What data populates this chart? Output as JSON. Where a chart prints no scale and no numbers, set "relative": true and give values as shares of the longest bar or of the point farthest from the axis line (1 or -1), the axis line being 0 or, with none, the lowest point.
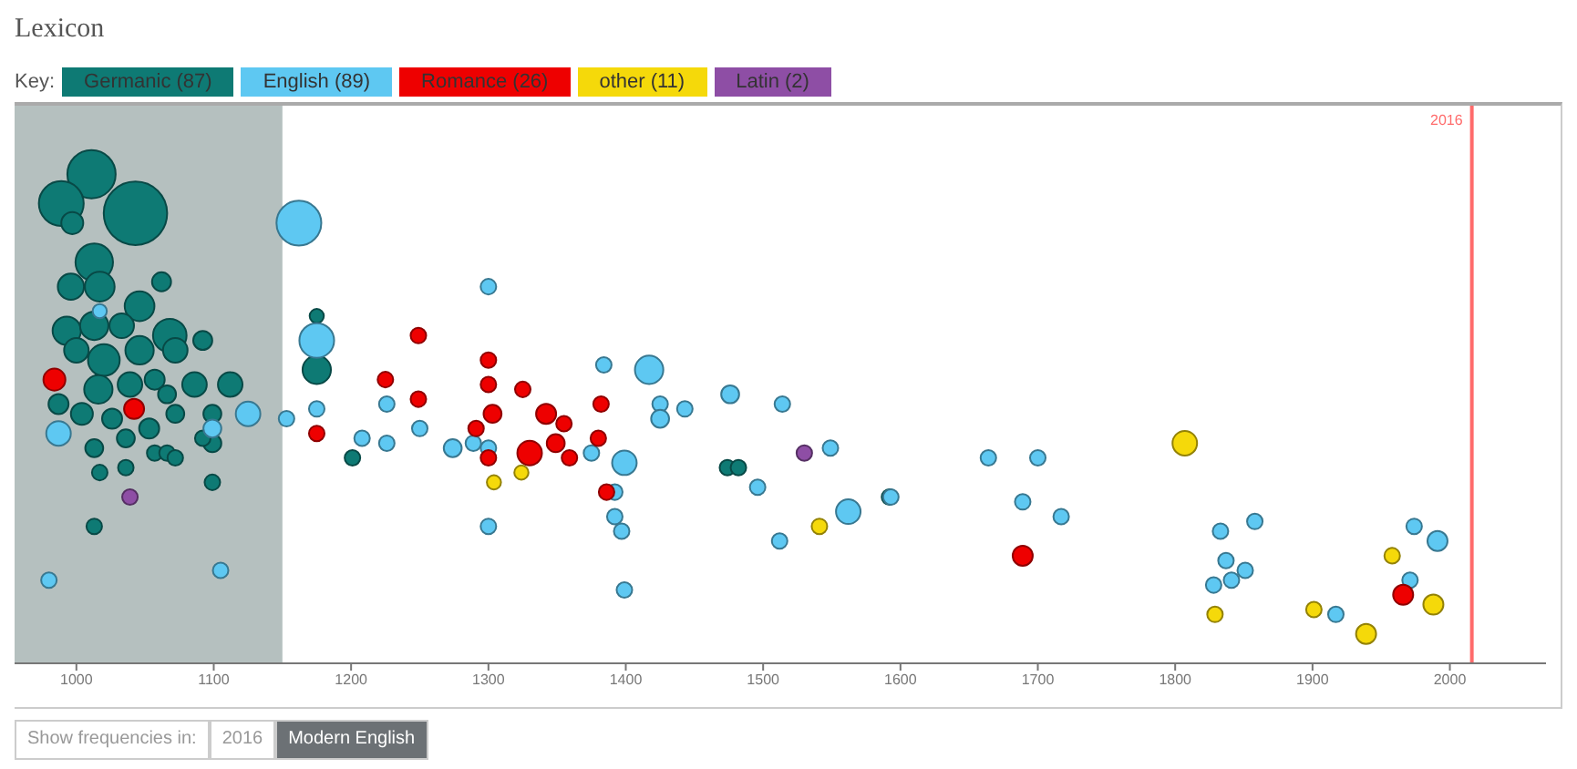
{
  "chart_data": {
    "type": "bubble",
    "title": "Lexicon",
    "legend_title": "Key:",
    "legend": "top left",
    "relative": true,
    "xlim": [
      955,
      2070
    ],
    "xticks": [
      1000,
      1100,
      1200,
      1300,
      1400,
      1500,
      1600,
      1700,
      1800,
      1900,
      2000
    ],
    "bands": [
      {
        "axis": "x",
        "from": 955,
        "to": 1150,
        "label": null,
        "color": "#b5c0bf"
      }
    ],
    "ref_lines": [
      {
        "axis": "x",
        "value": 2016,
        "label": "2016",
        "color": "#ff6b6b"
      }
    ],
    "annotations": [
      "Show frequencies in:",
      "2016",
      "Modern English"
    ],
    "series": [
      {
        "name": "Germanic (87)",
        "color": "#0e7a74",
        "x": [
          1011,
          989,
          1043,
          997,
          1013,
          996,
          1017,
          1046,
          1062,
          1068,
          993,
          1013,
          1033,
          1000,
          1020,
          1046,
          1072,
          1092,
          1016,
          1039,
          1057,
          1066,
          1086,
          1112,
          987,
          1004,
          1026,
          1053,
          1072,
          1099,
          1013,
          1036,
          1057,
          1066,
          1036,
          1017,
          1099,
          1013,
          1175,
          1175,
          1201,
          1474,
          1482,
          1592,
          1099,
          1092,
          1072
        ],
        "values": [
          1.0,
          0.94,
          0.92,
          0.9,
          0.82,
          0.77,
          0.77,
          0.73,
          0.78,
          0.67,
          0.68,
          0.69,
          0.69,
          0.64,
          0.62,
          0.64,
          0.64,
          0.66,
          0.56,
          0.57,
          0.58,
          0.55,
          0.57,
          0.57,
          0.53,
          0.51,
          0.5,
          0.48,
          0.51,
          0.51,
          0.44,
          0.46,
          0.43,
          0.43,
          0.4,
          0.39,
          0.37,
          0.28,
          0.71,
          0.6,
          0.42,
          0.4,
          0.4,
          0.34,
          0.45,
          0.46,
          0.42
        ],
        "sizes": [
          0.58,
          0.5,
          1,
          0.12,
          0.35,
          0.17,
          0.22,
          0.22,
          0.09,
          0.28,
          0.2,
          0.2,
          0.15,
          0.15,
          0.25,
          0.2,
          0.15,
          0.09,
          0.2,
          0.15,
          0.1,
          0.08,
          0.15,
          0.15,
          0.1,
          0.12,
          0.1,
          0.1,
          0.08,
          0.08,
          0.08,
          0.08,
          0.06,
          0.06,
          0.06,
          0.06,
          0.06,
          0.06,
          0.05,
          0.2,
          0.06,
          0.06,
          0.06,
          0.06,
          0.08,
          0.06,
          0.06
        ]
      },
      {
        "name": "English (89)",
        "color": "#5ec8f2",
        "x": [
          1162,
          1175,
          1017,
          987,
          1125,
          1153,
          1175,
          1099,
          980,
          1105,
          1300,
          1226,
          1226,
          1250,
          1274,
          1289,
          1300,
          1300,
          1384,
          1417,
          1425,
          1425,
          1443,
          1476,
          1514,
          1549,
          1399,
          1375,
          1392,
          1397,
          1399,
          1496,
          1512,
          1562,
          1593,
          1664,
          1700,
          1689,
          1717,
          1833,
          1858,
          1837,
          1851,
          1828,
          1841,
          1974,
          1991,
          1971,
          1917,
          1208,
          1392
        ],
        "values": [
          0.9,
          0.66,
          0.72,
          0.47,
          0.51,
          0.5,
          0.52,
          0.48,
          0.17,
          0.19,
          0.77,
          0.53,
          0.45,
          0.48,
          0.44,
          0.45,
          0.44,
          0.28,
          0.61,
          0.6,
          0.53,
          0.5,
          0.52,
          0.55,
          0.53,
          0.44,
          0.41,
          0.43,
          0.3,
          0.27,
          0.15,
          0.36,
          0.25,
          0.31,
          0.34,
          0.42,
          0.42,
          0.33,
          0.3,
          0.27,
          0.29,
          0.21,
          0.19,
          0.16,
          0.17,
          0.28,
          0.25,
          0.17,
          0.1,
          0.46,
          0.35
        ],
        "sizes": [
          0.5,
          0.3,
          0.05,
          0.15,
          0.15,
          0.06,
          0.06,
          0.08,
          0.06,
          0.06,
          0.06,
          0.06,
          0.06,
          0.06,
          0.08,
          0.06,
          0.06,
          0.06,
          0.06,
          0.2,
          0.06,
          0.08,
          0.06,
          0.08,
          0.06,
          0.06,
          0.15,
          0.06,
          0.06,
          0.06,
          0.06,
          0.06,
          0.06,
          0.15,
          0.06,
          0.06,
          0.06,
          0.06,
          0.06,
          0.06,
          0.06,
          0.06,
          0.06,
          0.06,
          0.06,
          0.06,
          0.1,
          0.06,
          0.06,
          0.06,
          0.06
        ]
      },
      {
        "name": "Romance (26)",
        "color": "#ee0000",
        "x": [
          984,
          1042,
          1175,
          1249,
          1225,
          1249,
          1300,
          1300,
          1303,
          1291,
          1325,
          1342,
          1330,
          1349,
          1355,
          1380,
          1382,
          1359,
          1386,
          1300,
          1689,
          1966
        ],
        "values": [
          0.58,
          0.52,
          0.47,
          0.67,
          0.58,
          0.54,
          0.62,
          0.57,
          0.51,
          0.48,
          0.56,
          0.51,
          0.43,
          0.45,
          0.49,
          0.46,
          0.53,
          0.42,
          0.35,
          0.42,
          0.22,
          0.14
        ],
        "sizes": [
          0.12,
          0.1,
          0.06,
          0.06,
          0.06,
          0.06,
          0.06,
          0.06,
          0.08,
          0.06,
          0.06,
          0.1,
          0.15,
          0.08,
          0.06,
          0.06,
          0.06,
          0.06,
          0.06,
          0.06,
          0.1,
          0.1
        ]
      },
      {
        "name": "other (11)",
        "color": "#f5d90a",
        "x": [
          1304,
          1324,
          1541,
          1807,
          1829,
          1901,
          1939,
          1958,
          1988
        ],
        "values": [
          0.37,
          0.39,
          0.28,
          0.45,
          0.1,
          0.11,
          0.06,
          0.22,
          0.12
        ],
        "sizes": [
          0.05,
          0.05,
          0.06,
          0.15,
          0.06,
          0.06,
          0.1,
          0.06,
          0.1
        ]
      },
      {
        "name": "Latin (2)",
        "color": "#8e4ea5",
        "x": [
          1039,
          1530
        ],
        "values": [
          0.34,
          0.43
        ],
        "sizes": [
          0.06,
          0.06
        ]
      }
    ]
  }
}
